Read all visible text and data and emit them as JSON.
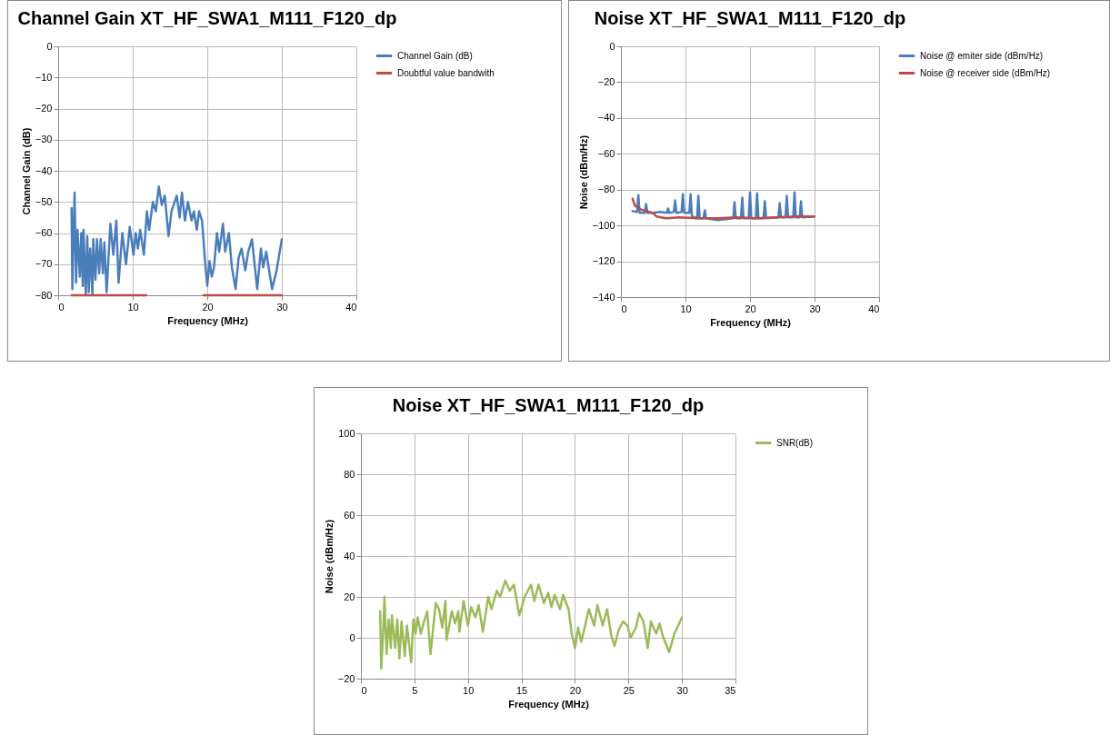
{
  "chart_data": [
    {
      "type": "line",
      "title": "Channel Gain XT_HF_SWA1_M111_F120_dp",
      "xlabel": "Frequency (MHz)",
      "ylabel": "Channel Gain (dB)",
      "xlim": [
        0,
        40
      ],
      "xticks": [
        0,
        10,
        20,
        30,
        40
      ],
      "ylim": [
        -80,
        0
      ],
      "yticks": [
        -80,
        -70,
        -60,
        -50,
        -40,
        -30,
        -20,
        -10,
        0
      ],
      "grid": true,
      "legend": "right",
      "series": [
        {
          "name": "Channel Gain (dB)",
          "color": "#4a7ebb",
          "x": [
            1.8,
            1.9,
            2.2,
            2.4,
            2.6,
            2.9,
            3.1,
            3.3,
            3.4,
            3.7,
            3.9,
            4.1,
            4.3,
            4.6,
            4.7,
            5,
            5.2,
            5.5,
            5.7,
            6,
            6.2,
            6.5,
            7,
            7.4,
            7.8,
            8.1,
            8.6,
            9.1,
            9.6,
            10.1,
            10.4,
            10.7,
            11,
            11.5,
            11.9,
            12.2,
            12.7,
            13.1,
            13.5,
            13.9,
            14.3,
            14.8,
            15.2,
            15.9,
            16.3,
            16.6,
            17,
            17.4,
            17.9,
            18.2,
            18.6,
            18.9,
            19.3,
            19.7,
            20,
            20.3,
            20.6,
            20.9,
            21.3,
            21.6,
            22.1,
            22.4,
            22.9,
            23.3,
            23.8,
            24.2,
            24.6,
            25.1,
            25.5,
            26,
            26.7,
            27.2,
            27.5,
            27.9,
            28.7,
            29.3,
            30
          ],
          "values": [
            -52,
            -78,
            -47,
            -76,
            -59,
            -74,
            -60,
            -77,
            -59,
            -80,
            -61,
            -79,
            -65,
            -80,
            -62,
            -75,
            -62,
            -73,
            -62,
            -73,
            -63,
            -79,
            -57,
            -67,
            -56,
            -76,
            -60,
            -70,
            -58,
            -67,
            -60,
            -65,
            -59,
            -67,
            -53,
            -59,
            -50,
            -53,
            -45,
            -51,
            -48,
            -61,
            -53,
            -48,
            -55,
            -47,
            -56,
            -50,
            -56,
            -53,
            -59,
            -53,
            -56,
            -69,
            -77,
            -69,
            -74,
            -71,
            -60,
            -66,
            -57,
            -66,
            -60,
            -71,
            -78,
            -68,
            -65,
            -72,
            -66,
            -62,
            -78,
            -65,
            -71,
            -66,
            -78,
            -72,
            -62
          ]
        },
        {
          "name": "Doubtful value bandwith",
          "color": "#be4b48",
          "x": [
            1.8,
            11.8,
            15,
            19.5,
            30
          ],
          "values": [
            -80,
            -80,
            null,
            -80,
            -80
          ]
        }
      ]
    },
    {
      "type": "line",
      "title": "Noise XT_HF_SWA1_M111_F120_dp",
      "xlabel": "Frequency (MHz)",
      "ylabel": "Noise (dBm/Hz)",
      "xlim": [
        0,
        40
      ],
      "xticks": [
        0,
        10,
        20,
        30,
        40
      ],
      "ylim": [
        -140,
        0
      ],
      "yticks": [
        -140,
        -120,
        -100,
        -80,
        -60,
        -40,
        -20,
        0
      ],
      "grid": true,
      "legend": "right",
      "series": [
        {
          "name": "Noise @ emiter side (dBm/Hz)",
          "color": "#4a7ebb",
          "x": [
            1.8,
            2.5,
            2.7,
            2.9,
            3.7,
            3.9,
            4.1,
            5,
            6,
            7.1,
            7.3,
            7.5,
            8.2,
            8.4,
            8.6,
            9.4,
            9.6,
            9.8,
            10.6,
            10.8,
            11,
            11.8,
            12,
            12.2,
            12.8,
            13,
            13.2,
            15,
            17.4,
            17.6,
            17.8,
            18.6,
            18.8,
            19,
            19.8,
            20,
            20.2,
            20.9,
            21.1,
            21.3,
            22.1,
            22.3,
            22.5,
            24.4,
            24.6,
            24.8,
            25.5,
            25.7,
            25.9,
            26.7,
            26.9,
            27.1,
            27.7,
            27.9,
            28.1,
            30
          ],
          "values": [
            -92,
            -92.5,
            -83,
            -93,
            -93,
            -88,
            -93,
            -93,
            -92.5,
            -93,
            -90.5,
            -93,
            -92.5,
            -86,
            -93,
            -92.5,
            -82.5,
            -93,
            -93,
            -82.5,
            -95,
            -96,
            -83.5,
            -96,
            -96,
            -91.5,
            -96,
            -97,
            -96,
            -87,
            -96,
            -96,
            -84.5,
            -96,
            -96,
            -81.5,
            -96,
            -96,
            -82,
            -96,
            -96,
            -86.5,
            -96,
            -95.5,
            -87.5,
            -95.5,
            -95.5,
            -83.5,
            -95.5,
            -95.5,
            -81.5,
            -95.5,
            -95.5,
            -86.5,
            -95.5,
            -95
          ]
        },
        {
          "name": "Noise @ receiver side (dBm/Hz)",
          "color": "#be4b48",
          "x": [
            1.8,
            2.2,
            3,
            4,
            5,
            5.5,
            7,
            9,
            12,
            15,
            18,
            21,
            24,
            27,
            30
          ],
          "values": [
            -85,
            -89,
            -91,
            -92,
            -93,
            -95,
            -96,
            -95.5,
            -96,
            -96,
            -95.5,
            -96,
            -95.5,
            -95,
            -95
          ]
        }
      ]
    },
    {
      "type": "line",
      "title": "Noise XT_HF_SWA1_M111_F120_dp",
      "xlabel": "Frequency (MHz)",
      "ylabel": "Noise (dBm/Hz)",
      "xlim": [
        0,
        35
      ],
      "xticks": [
        0,
        5,
        10,
        15,
        20,
        25,
        30,
        35
      ],
      "ylim": [
        -20,
        100
      ],
      "yticks": [
        -20,
        0,
        20,
        40,
        60,
        80,
        100
      ],
      "grid": true,
      "legend": "right",
      "series": [
        {
          "name": "SNR(dB)",
          "color": "#9bbb59",
          "x": [
            1.8,
            1.9,
            2.1,
            2.2,
            2.4,
            2.6,
            2.8,
            2.9,
            3.2,
            3.4,
            3.6,
            3.8,
            4.1,
            4.3,
            4.7,
            4.9,
            5.1,
            5.3,
            5.6,
            5.9,
            6.2,
            6.5,
            7,
            7.3,
            7.6,
            7.9,
            8,
            8.5,
            8.8,
            9.1,
            9.2,
            9.6,
            10,
            10.3,
            10.7,
            11,
            11.4,
            11.9,
            12.2,
            12.7,
            13,
            13.5,
            13.9,
            14.3,
            14.8,
            15.3,
            15.9,
            16.2,
            16.6,
            17.1,
            17.5,
            17.8,
            18.1,
            18.6,
            18.9,
            19.4,
            19.7,
            20,
            20.3,
            20.6,
            21.3,
            21.8,
            22.1,
            22.6,
            23,
            23.4,
            23.7,
            24.1,
            24.5,
            24.9,
            25.2,
            25.7,
            26,
            26.4,
            26.8,
            27.1,
            27.6,
            27.9,
            28.2,
            28.8,
            29.3,
            30
          ],
          "values": [
            13,
            -15,
            5,
            20,
            -8,
            9,
            -5,
            11,
            -5,
            9,
            -10,
            8,
            -9,
            6,
            -12,
            9,
            2,
            10,
            2,
            8,
            13,
            -8,
            17,
            14,
            5,
            18,
            -1,
            13,
            7,
            13,
            3,
            18,
            6,
            15,
            10,
            16,
            3,
            20,
            14,
            23,
            20,
            28,
            23,
            26,
            11,
            20,
            26,
            18,
            26,
            17,
            22,
            15,
            21,
            14,
            21,
            14,
            2,
            -5,
            5,
            -2,
            14,
            6,
            16,
            6,
            14,
            1,
            -4,
            4,
            8,
            6,
            0,
            5,
            12,
            8,
            -5,
            8,
            2,
            7,
            1,
            -7,
            2,
            10
          ]
        }
      ]
    }
  ]
}
